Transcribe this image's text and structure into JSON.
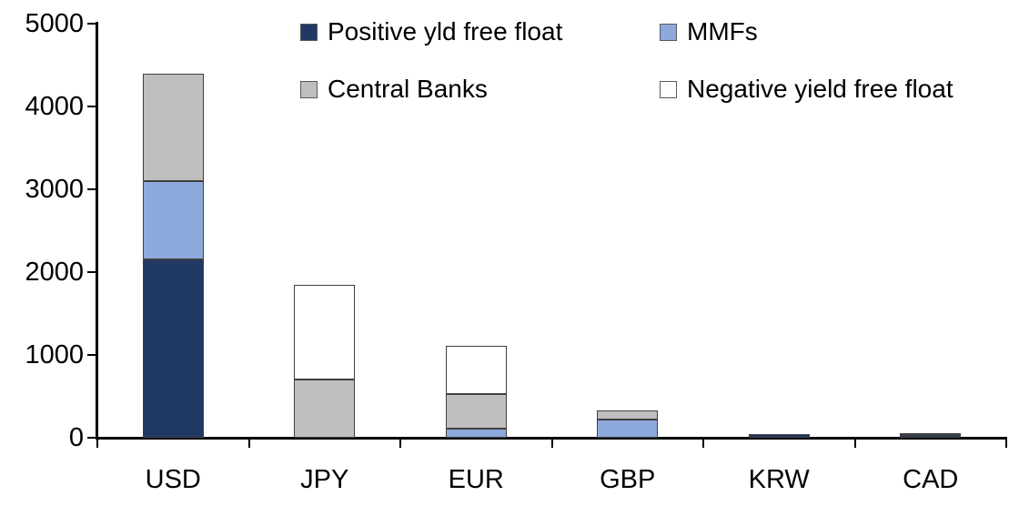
{
  "chart_data": {
    "type": "bar",
    "stacked": true,
    "categories": [
      "USD",
      "JPY",
      "EUR",
      "GBP",
      "KRW",
      "CAD"
    ],
    "series": [
      {
        "name": "Positive yld free float",
        "color": "#203864",
        "values": [
          2150,
          0,
          0,
          0,
          45,
          35
        ]
      },
      {
        "name": "MMFs",
        "color": "#8EA9DB",
        "values": [
          950,
          0,
          110,
          220,
          0,
          0
        ]
      },
      {
        "name": "Central Banks",
        "color": "#BFBFBF",
        "values": [
          1300,
          700,
          420,
          110,
          0,
          25
        ]
      },
      {
        "name": "Negative yield free float",
        "color": "#FFFFFF",
        "values": [
          0,
          1150,
          580,
          0,
          0,
          0
        ]
      }
    ],
    "ylim": [
      0,
      5000
    ],
    "yticks": [
      0,
      1000,
      2000,
      3000,
      4000,
      5000
    ],
    "grid": false,
    "legend_position": "top",
    "axis_color": "#000000",
    "bar_border_color": "#404040"
  }
}
